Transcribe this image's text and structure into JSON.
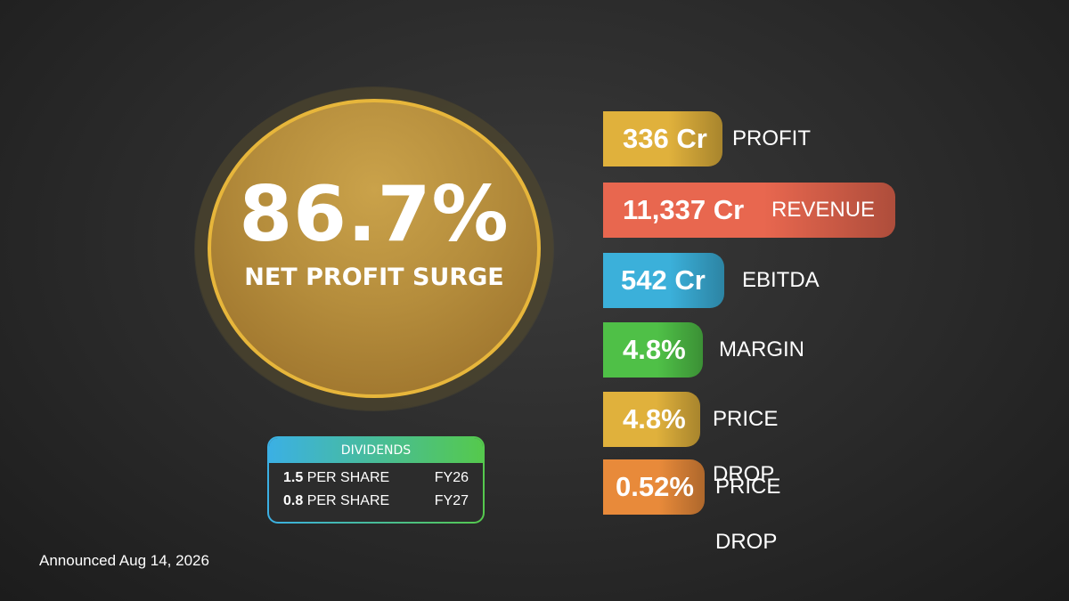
{
  "headline": {
    "value": "86.7%",
    "caption": "NET PROFIT SURGE"
  },
  "dividends": {
    "title": "DIVIDENDS",
    "rows": [
      {
        "amount": "1.5",
        "unit": "PER SHARE",
        "year": "FY26"
      },
      {
        "amount": "0.8",
        "unit": "PER SHARE",
        "year": "FY27"
      }
    ]
  },
  "metrics": [
    {
      "value": "336 Cr",
      "label": "PROFIT",
      "color": "#e0b13c"
    },
    {
      "value": "11,337 Cr",
      "label": "REVENUE",
      "color": "#e8674f"
    },
    {
      "value": "542 Cr",
      "label": "EBITDA",
      "color": "#3bb0da"
    },
    {
      "value": "4.8%",
      "label": "MARGIN",
      "color": "#4fc047"
    },
    {
      "value": "4.8%",
      "label": "PRICE DROP",
      "color": "#e0b13c"
    },
    {
      "value": "0.52%",
      "label": "PRICE DROP",
      "color": "#e88a3a"
    }
  ],
  "footer": {
    "announced": "Announced Aug 14, 2026"
  }
}
